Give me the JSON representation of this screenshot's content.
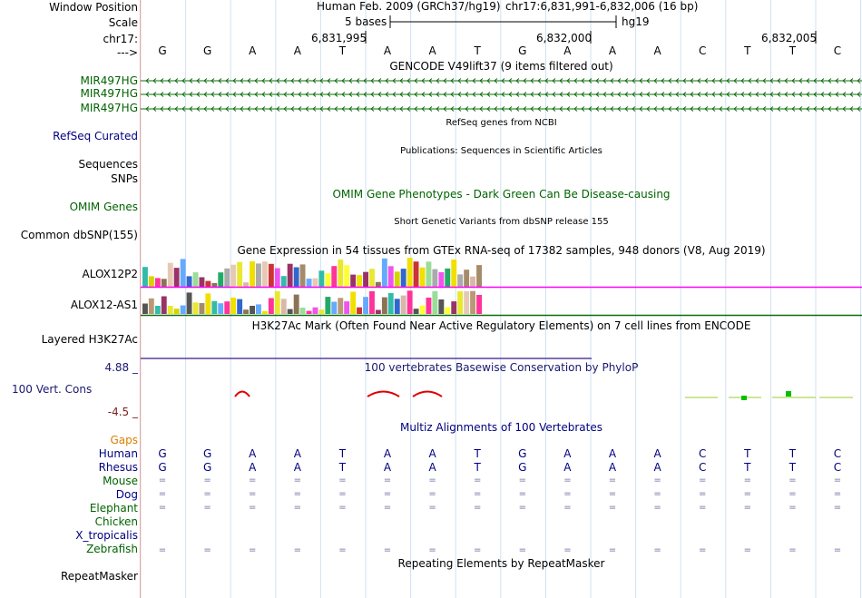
{
  "header": {
    "window_position_label": "Window Position",
    "scale_label": "Scale",
    "chrom_label": "chr17:",
    "arrow_label": "--->",
    "assembly_text": "Human Feb. 2009 (GRCh37/hg19)",
    "position_text": "chr17:6,831,991-6,832,006 (16 bp)",
    "scale_text": "5 bases",
    "db_text": "hg19",
    "coord_ticks": [
      "6,831,995",
      "6,832,000",
      "6,832,005"
    ]
  },
  "sequence": [
    "G",
    "G",
    "A",
    "A",
    "T",
    "A",
    "A",
    "T",
    "G",
    "A",
    "A",
    "A",
    "C",
    "T",
    "T",
    "C"
  ],
  "tracks": {
    "gencode": {
      "title": "GENCODE V49lift37 (9 items filtered out)",
      "items": [
        "MIR497HG",
        "MIR497HG",
        "MIR497HG"
      ]
    },
    "refseq": {
      "title": "RefSeq genes from NCBI",
      "label": "RefSeq Curated"
    },
    "publications": {
      "title": "Publications: Sequences in Scientific Articles",
      "labels": [
        "Sequences",
        "SNPs"
      ]
    },
    "omim": {
      "title": "OMIM Gene Phenotypes - Dark Green Can Be Disease-causing",
      "label": "OMIM Genes"
    },
    "dbsnp": {
      "title": "Short Genetic Variants from dbSNP release 155",
      "label": "Common dbSNP(155)"
    },
    "gtex": {
      "title": "Gene Expression in 54 tissues from GTEx RNA-seq of 17382 samples, 948 donors (V8, Aug 2019)",
      "genes": [
        "ALOX12P2",
        "ALOX12-AS1"
      ]
    },
    "h3k27ac": {
      "title": "H3K27Ac Mark (Often Found Near Active Regulatory Elements) on 7 cell lines from ENCODE",
      "label": "Layered H3K27Ac"
    },
    "phylop": {
      "title": "100 vertebrates Basewise Conservation by PhyloP",
      "label": "100 Vert. Cons",
      "max": "4.88 _",
      "min": "-4.5 _"
    },
    "multiz": {
      "title": "Multiz Alignments of 100 Vertebrates",
      "gaps_label": "Gaps",
      "species": [
        "Human",
        "Rhesus",
        "Mouse",
        "Dog",
        "Elephant",
        "Chicken",
        "X_tropicalis",
        "Zebrafish"
      ],
      "rhesus_seq": [
        "G",
        "G",
        "A",
        "A",
        "T",
        "A",
        "A",
        "T",
        "G",
        "A",
        "A",
        "A",
        "C",
        "T",
        "T",
        "C"
      ],
      "eq_symbol": "="
    },
    "repeatmasker": {
      "title": "Repeating Elements by RepeatMasker",
      "label": "RepeatMasker"
    }
  },
  "colors": {
    "gencode": "#0c6e0c",
    "navy": "#000080",
    "magenta": "#ff00ff",
    "phylop_neg": "#e00000",
    "phylop_pos": "#00c000"
  }
}
